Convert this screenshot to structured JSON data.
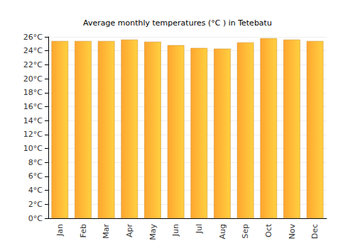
{
  "chart_data": {
    "type": "bar",
    "title": "Average monthly temperatures (°C ) in Tetebatu",
    "categories": [
      "Jan",
      "Feb",
      "Mar",
      "Apr",
      "May",
      "Jun",
      "Jul",
      "Aug",
      "Sep",
      "Oct",
      "Nov",
      "Dec"
    ],
    "values": [
      25.4,
      25.4,
      25.4,
      25.6,
      25.3,
      24.8,
      24.4,
      24.3,
      25.2,
      25.8,
      25.6,
      25.4
    ],
    "color": "#ffa630",
    "ylim": [
      0,
      26
    ],
    "yticks": [
      {
        "value": 0,
        "label": "0°C"
      },
      {
        "value": 2,
        "label": "2°C"
      },
      {
        "value": 4,
        "label": "4°C"
      },
      {
        "value": 6,
        "label": "6°C"
      },
      {
        "value": 8,
        "label": "8°C"
      },
      {
        "value": 10,
        "label": "10°C"
      },
      {
        "value": 12,
        "label": "12°C"
      },
      {
        "value": 14,
        "label": "14°C"
      },
      {
        "value": 16,
        "label": "16°C"
      },
      {
        "value": 18,
        "label": "18°C"
      },
      {
        "value": 20,
        "label": "20°C"
      },
      {
        "value": 22,
        "label": "22°C"
      },
      {
        "value": 24,
        "label": "24°C"
      },
      {
        "value": 26,
        "label": "26°C"
      }
    ],
    "grid": true
  }
}
